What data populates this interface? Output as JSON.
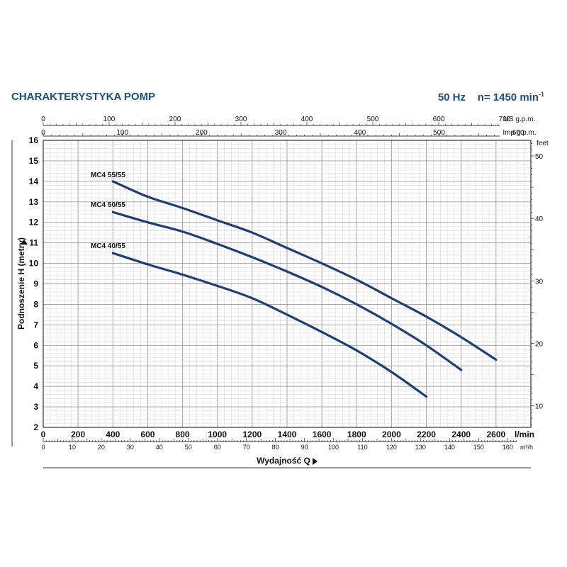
{
  "header": {
    "title": "CHARAKTERYSTYKA POMP",
    "freq": "50 Hz",
    "speed_prefix": "n= 1450 min",
    "speed_sup": "-1"
  },
  "chart_data": {
    "type": "line",
    "xlabel": "Wydajność Q",
    "ylabel": "Podnoszenie H (metry)",
    "x_unit": "l/min",
    "xlim": [
      0,
      2800
    ],
    "ylim": [
      2,
      16
    ],
    "grid": true,
    "x_ticks": [
      "0",
      "200",
      "400",
      "600",
      "800",
      "1000",
      "1200",
      "1400",
      "1600",
      "1800",
      "2000",
      "2200",
      "2400",
      "2600"
    ],
    "y_ticks": [
      "2",
      "3",
      "4",
      "5",
      "6",
      "7",
      "8",
      "9",
      "10",
      "11",
      "12",
      "13",
      "14",
      "15",
      "16"
    ],
    "secondary_axes": {
      "us_gpm": {
        "unit": "US g.p.m.",
        "ticks": [
          "0",
          "100",
          "200",
          "300",
          "400",
          "500",
          "600",
          "700"
        ]
      },
      "imp_gpm": {
        "unit": "Imp g.p.m.",
        "ticks": [
          "0",
          "100",
          "200",
          "300",
          "400",
          "500",
          "600"
        ]
      },
      "m3h": {
        "unit": "m³/h",
        "ticks": [
          "0",
          "10",
          "20",
          "30",
          "40",
          "50",
          "60",
          "70",
          "80",
          "90",
          "100",
          "110",
          "120",
          "130",
          "140",
          "150",
          "160"
        ]
      },
      "feet": {
        "unit": "feet",
        "ticks": [
          "10",
          "20",
          "30",
          "40",
          "50"
        ]
      }
    },
    "series": [
      {
        "name": "MC4 55/55",
        "color": "#1f3f73",
        "x": [
          400,
          600,
          800,
          1000,
          1200,
          1400,
          1600,
          1800,
          2000,
          2200,
          2400,
          2600
        ],
        "y": [
          14.0,
          13.25,
          12.7,
          12.1,
          11.5,
          10.75,
          10.0,
          9.2,
          8.3,
          7.4,
          6.4,
          5.3
        ]
      },
      {
        "name": "MC4 50/55",
        "color": "#1f3f73",
        "x": [
          400,
          600,
          800,
          1000,
          1200,
          1400,
          1600,
          1800,
          2000,
          2200,
          2400
        ],
        "y": [
          12.5,
          12.0,
          11.55,
          10.95,
          10.3,
          9.6,
          8.85,
          8.0,
          7.05,
          6.0,
          4.8
        ]
      },
      {
        "name": "MC4 40/55",
        "color": "#1f3f73",
        "x": [
          400,
          600,
          800,
          1000,
          1200,
          1400,
          1600,
          1800,
          2000,
          2200
        ],
        "y": [
          10.5,
          9.95,
          9.45,
          8.9,
          8.3,
          7.5,
          6.65,
          5.75,
          4.7,
          3.5
        ]
      }
    ]
  }
}
